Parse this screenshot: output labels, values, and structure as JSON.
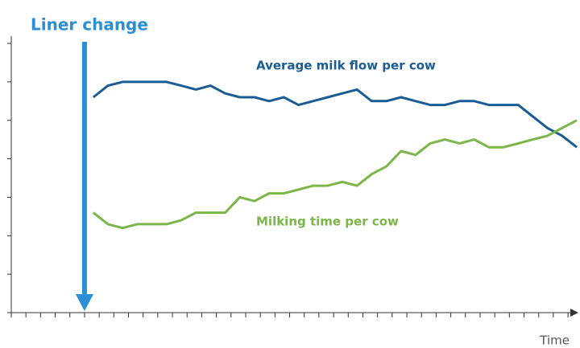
{
  "chart_data": {
    "type": "line",
    "x_label": "Time",
    "annotation": {
      "text": "Liner change",
      "x": 5.0,
      "color": "#2b8fd6"
    },
    "x": [
      5.6,
      6.6,
      7.6,
      8.6,
      9.6,
      10.6,
      11.6,
      12.6,
      13.6,
      14.6,
      15.6,
      16.6,
      17.6,
      18.6,
      19.6,
      20.6,
      21.6,
      22.6,
      23.6,
      24.6,
      25.6,
      26.6,
      27.6,
      28.6,
      29.6,
      30.6,
      31.6,
      32.6,
      33.6,
      34.6,
      35.6,
      36.6,
      37.6,
      38.6
    ],
    "series": [
      {
        "name": "Average milk flow per cow",
        "color": "#1a5c94",
        "values": [
          5.6,
          5.9,
          6.0,
          6.0,
          6.0,
          6.0,
          5.9,
          5.8,
          5.9,
          5.7,
          5.6,
          5.6,
          5.5,
          5.6,
          5.4,
          5.5,
          5.6,
          5.7,
          5.8,
          5.5,
          5.5,
          5.6,
          5.5,
          5.4,
          5.4,
          5.5,
          5.5,
          5.4,
          5.4,
          5.4,
          5.1,
          4.8,
          4.6,
          4.3
        ]
      },
      {
        "name": "Milking time per cow",
        "color": "#7ab648",
        "values": [
          2.6,
          2.3,
          2.2,
          2.3,
          2.3,
          2.3,
          2.4,
          2.6,
          2.6,
          2.6,
          3.0,
          2.9,
          3.1,
          3.1,
          3.2,
          3.3,
          3.3,
          3.4,
          3.3,
          3.6,
          3.8,
          4.2,
          4.1,
          4.4,
          4.5,
          4.4,
          4.5,
          4.3,
          4.3,
          4.4,
          4.5,
          4.6,
          4.8,
          5.0
        ]
      }
    ],
    "xlim": [
      0,
      38.6
    ],
    "xticks": [
      0,
      1,
      2,
      3,
      4,
      5,
      6,
      7,
      8,
      9,
      10,
      11,
      12,
      13,
      14,
      15,
      16,
      17,
      18,
      19,
      20,
      21,
      22,
      23,
      24,
      25,
      26,
      27,
      28,
      29,
      30,
      31,
      32,
      33,
      34,
      35,
      36,
      37,
      38
    ],
    "ylim": [
      0,
      7
    ],
    "yticks": [
      0,
      1,
      2,
      3,
      4,
      5,
      6,
      7
    ]
  }
}
